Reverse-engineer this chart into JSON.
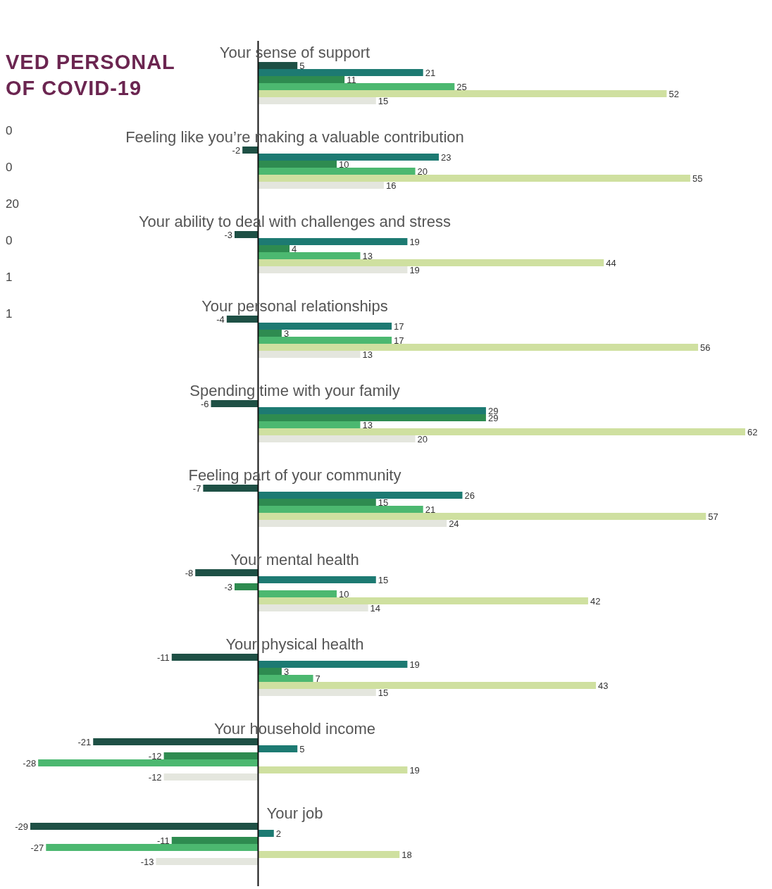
{
  "chart_data": {
    "type": "bar",
    "orientation": "horizontal",
    "title": "VED PERSONAL\nOF COVID-19",
    "data_labels": true,
    "annotations": [
      "0",
      "0",
      "20",
      "0",
      "1",
      "1"
    ],
    "categories": [
      "Your sense of support",
      "Feeling like you’re making a valuable contribution",
      "Your ability to deal with challenges and stress",
      "Your personal relationships",
      "Spending time with your family",
      "Feeling part of your community",
      "Your mental health",
      "Your physical health",
      "Your household income",
      "Your job"
    ],
    "series": [
      {
        "color": "#1e5045",
        "values": [
          5,
          -2,
          -3,
          -4,
          -6,
          -7,
          -8,
          -11,
          -21,
          -29
        ]
      },
      {
        "color": "#1d7a72",
        "values": [
          21,
          23,
          19,
          17,
          29,
          26,
          15,
          19,
          5,
          2
        ]
      },
      {
        "color": "#2e8b50",
        "values": [
          11,
          10,
          4,
          3,
          29,
          15,
          -3,
          3,
          -12,
          -11
        ]
      },
      {
        "color": "#4cb870",
        "values": [
          25,
          20,
          13,
          17,
          13,
          21,
          10,
          7,
          -28,
          -27
        ]
      },
      {
        "color": "#cfe0a0",
        "values": [
          52,
          55,
          44,
          56,
          62,
          57,
          42,
          43,
          19,
          18
        ]
      },
      {
        "color": "#e4e6de",
        "values": [
          15,
          16,
          19,
          13,
          20,
          24,
          14,
          15,
          -12,
          -13
        ]
      }
    ]
  }
}
